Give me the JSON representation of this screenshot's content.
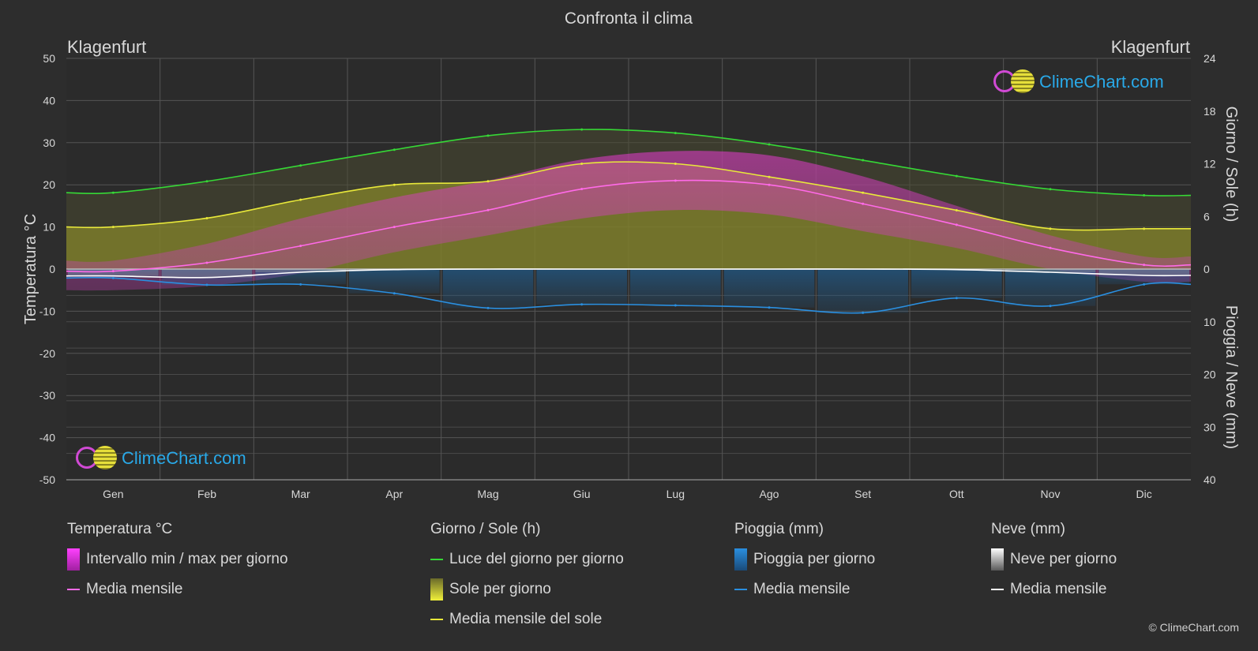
{
  "chart_data": {
    "type": "area",
    "title": "Confronta il clima",
    "location_left": "Klagenfurt",
    "location_right": "Klagenfurt",
    "categories": [
      "Gen",
      "Feb",
      "Mar",
      "Apr",
      "Mag",
      "Giu",
      "Lug",
      "Ago",
      "Set",
      "Ott",
      "Nov",
      "Dic"
    ],
    "y_left": {
      "label": "Temperatura °C",
      "min": -50,
      "max": 50,
      "ticks": [
        50,
        40,
        30,
        20,
        10,
        0,
        -10,
        -20,
        -30,
        -40,
        -50
      ]
    },
    "y_right_top": {
      "label": "Giorno / Sole (h)",
      "min": 0,
      "max": 24,
      "ticks": [
        24,
        18,
        12,
        6,
        0
      ]
    },
    "y_right_bottom": {
      "label": "Pioggia / Neve (mm)",
      "min": 0,
      "max": 40,
      "ticks": [
        10,
        20,
        30,
        40
      ]
    },
    "grid": true,
    "series": [
      {
        "name": "Luce del giorno per giorno",
        "unit": "h",
        "color": "#36d836",
        "values": [
          8.7,
          10.0,
          11.8,
          13.6,
          15.2,
          15.9,
          15.5,
          14.2,
          12.4,
          10.6,
          9.1,
          8.4
        ]
      },
      {
        "name": "Media mensile del sole",
        "unit": "h",
        "color": "#e8e83a",
        "values": [
          4.8,
          5.8,
          7.9,
          9.6,
          10.0,
          12.0,
          12.0,
          10.5,
          8.7,
          6.7,
          4.6,
          4.6
        ]
      },
      {
        "name": "Media mensile",
        "group": "Temperatura °C",
        "unit": "°C",
        "color": "#ff6ae8",
        "values": [
          -0.5,
          1.5,
          5.5,
          10.0,
          14.0,
          19.0,
          21.0,
          20.0,
          15.5,
          10.5,
          5.0,
          1.0
        ]
      },
      {
        "name": "Intervallo min / max per giorno",
        "unit": "°C",
        "min": [
          -5,
          -4,
          -1,
          4,
          8,
          12,
          14,
          13,
          9,
          5,
          0,
          -3
        ],
        "max": [
          2,
          6,
          12,
          17,
          21,
          26,
          28,
          27,
          22,
          15,
          8,
          3
        ]
      },
      {
        "name": "Media mensile",
        "group": "Pioggia (mm)",
        "unit": "mm",
        "color": "#2a8fe0",
        "values": [
          1.7,
          3.0,
          2.9,
          4.6,
          7.4,
          6.7,
          6.9,
          7.3,
          8.3,
          5.5,
          7.0,
          2.9
        ]
      },
      {
        "name": "Media mensile",
        "group": "Neve (mm)",
        "unit": "mm",
        "color": "#ffffff",
        "values": [
          1.3,
          1.6,
          0.6,
          0.1,
          0.0,
          0.0,
          0.0,
          0.0,
          0.0,
          0.1,
          0.6,
          1.2
        ]
      }
    ]
  },
  "legend": {
    "temp": {
      "title": "Temperatura °C",
      "range": "Intervallo min / max per giorno",
      "mean": "Media mensile"
    },
    "sun": {
      "title": "Giorno / Sole (h)",
      "daylight": "Luce del giorno per giorno",
      "sunshine": "Sole per giorno",
      "mean": "Media mensile del sole"
    },
    "rain": {
      "title": "Pioggia (mm)",
      "daily": "Pioggia per giorno",
      "mean": "Media mensile"
    },
    "snow": {
      "title": "Neve (mm)",
      "daily": "Neve per giorno",
      "mean": "Media mensile"
    }
  },
  "logo_text": "ClimeChart.com",
  "copyright": "© ClimeChart.com"
}
